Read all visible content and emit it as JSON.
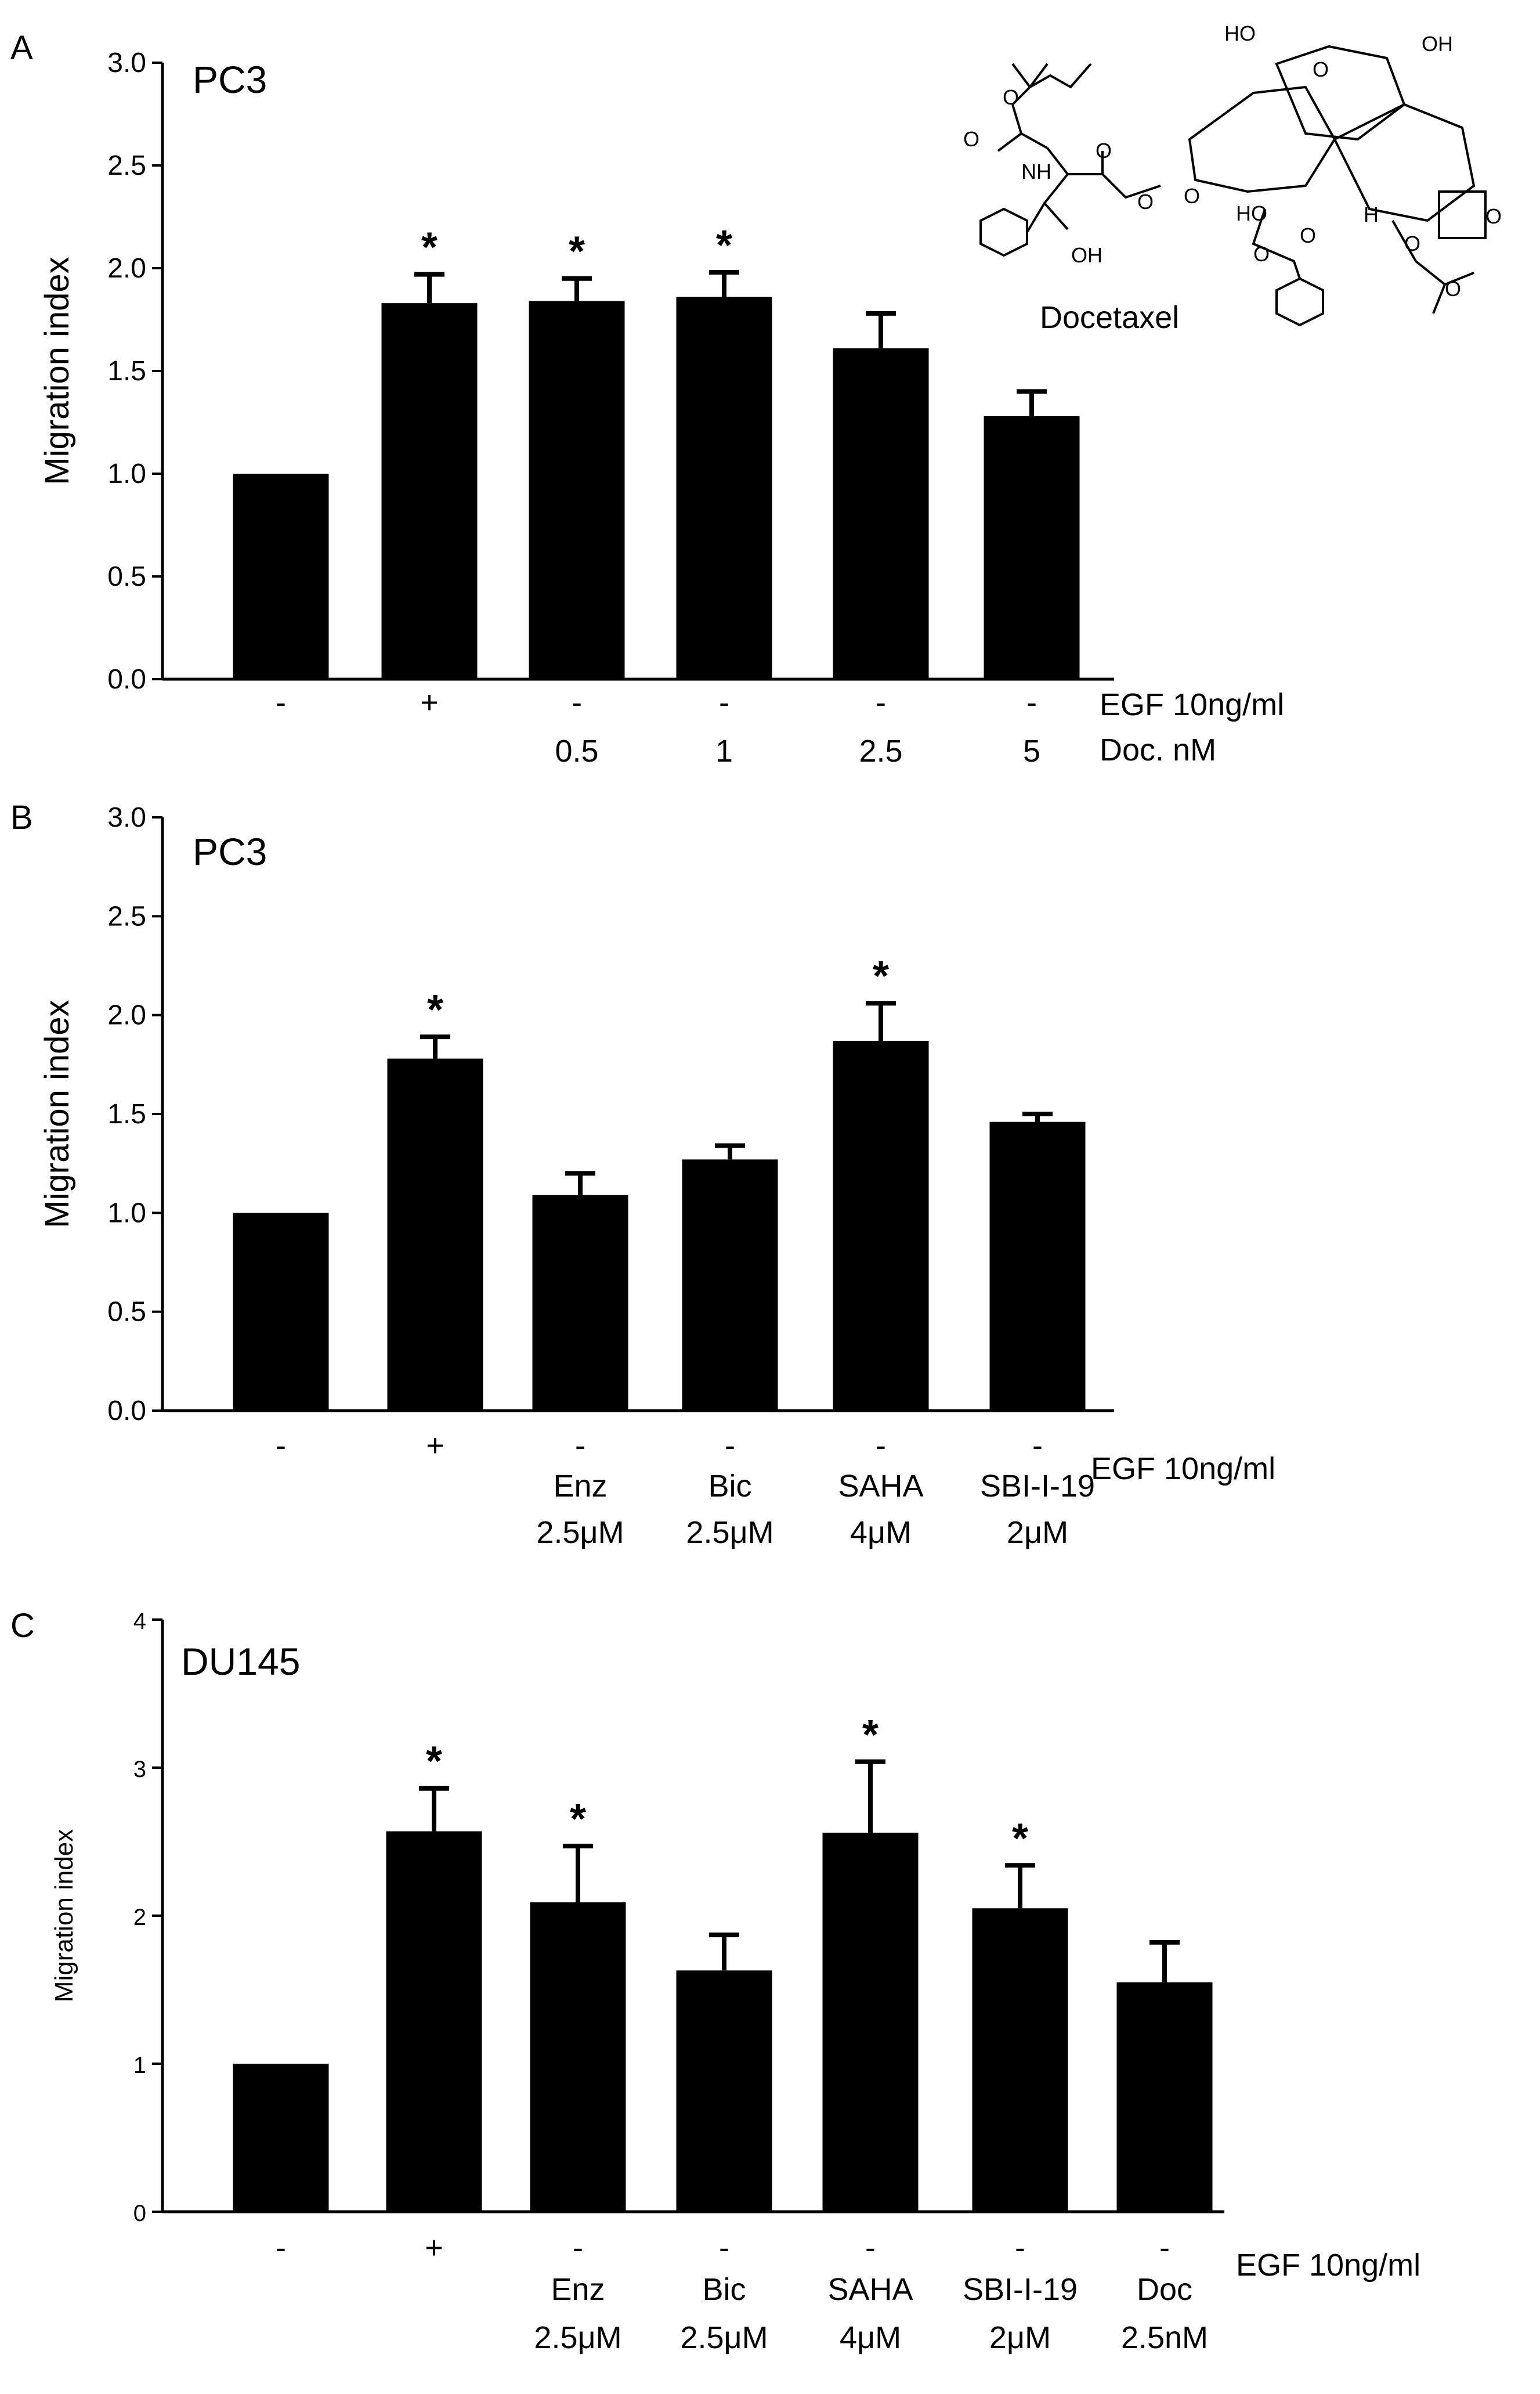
{
  "colors": {
    "bar": "#000000",
    "axis": "#000000",
    "background": "#ffffff"
  },
  "panels": [
    {
      "letter": "A",
      "cell_line": "PC3",
      "molecule": {
        "name": "Docetaxel",
        "atoms": [
          "HO",
          "O",
          "OH",
          "O",
          "NH",
          "O",
          "O",
          "O",
          "H",
          "O",
          "HO",
          "OH",
          "O",
          "O",
          "O",
          "O",
          "O"
        ]
      },
      "row_labels": [
        "EGF 10ng/ml",
        "Doc. nM"
      ]
    },
    {
      "letter": "B",
      "cell_line": "PC3",
      "row_labels": [
        "EGF 10ng/ml"
      ]
    },
    {
      "letter": "C",
      "cell_line": "DU145",
      "row_labels": [
        "EGF 10ng/ml"
      ]
    }
  ],
  "chart_data": [
    {
      "type": "bar",
      "panel": "A",
      "title": "PC3",
      "ylabel": "Migration index",
      "ylim": [
        0,
        3
      ],
      "yticks": [
        "0.0",
        "0.5",
        "1.0",
        "1.5",
        "2.0",
        "2.5",
        "3.0"
      ],
      "egf": [
        "-",
        "+",
        "-",
        "-",
        "-",
        "-"
      ],
      "treatment": [
        [
          ""
        ],
        [
          ""
        ],
        [
          "0.5"
        ],
        [
          "1"
        ],
        [
          "2.5"
        ],
        [
          "5"
        ]
      ],
      "values": [
        1.0,
        1.83,
        1.84,
        1.86,
        1.61,
        1.28
      ],
      "errors": [
        0,
        0.14,
        0.11,
        0.12,
        0.17,
        0.12
      ],
      "significant": [
        false,
        true,
        true,
        true,
        false,
        false
      ],
      "star": "*"
    },
    {
      "type": "bar",
      "panel": "B",
      "title": "PC3",
      "ylabel": "Migration index",
      "ylim": [
        0,
        3
      ],
      "yticks": [
        "0.0",
        "0.5",
        "1.0",
        "1.5",
        "2.0",
        "2.5",
        "3.0"
      ],
      "egf": [
        "-",
        "+",
        "-",
        "-",
        "-",
        "-"
      ],
      "treatment": [
        [
          ""
        ],
        [
          ""
        ],
        [
          "Enz",
          "2.5μM"
        ],
        [
          "Bic",
          "2.5μM"
        ],
        [
          "SAHA",
          "4μM"
        ],
        [
          "SBI-I-19",
          "2μM"
        ]
      ],
      "values": [
        1.0,
        1.78,
        1.09,
        1.27,
        1.87,
        1.46
      ],
      "errors": [
        0,
        0.11,
        0.11,
        0.07,
        0.19,
        0.04
      ],
      "significant": [
        false,
        true,
        false,
        false,
        true,
        false
      ],
      "star": "*"
    },
    {
      "type": "bar",
      "panel": "C",
      "title": "DU145",
      "ylabel": "Migration index",
      "ylim": [
        0,
        4
      ],
      "yticks": [
        "0",
        "1",
        "2",
        "3",
        "4"
      ],
      "egf": [
        "-",
        "+",
        "-",
        "-",
        "-",
        "-",
        "-"
      ],
      "treatment": [
        [
          ""
        ],
        [
          ""
        ],
        [
          "Enz",
          "2.5μM"
        ],
        [
          "Bic",
          "2.5μM"
        ],
        [
          "SAHA",
          "4μM"
        ],
        [
          "SBI-I-19",
          "2μM"
        ],
        [
          "Doc",
          "2.5nM"
        ]
      ],
      "values": [
        1.0,
        2.57,
        2.09,
        1.63,
        2.56,
        2.05,
        1.55
      ],
      "errors": [
        0,
        0.29,
        0.38,
        0.24,
        0.48,
        0.29,
        0.27
      ],
      "significant": [
        false,
        true,
        true,
        false,
        true,
        true,
        false
      ],
      "star": "*"
    }
  ]
}
